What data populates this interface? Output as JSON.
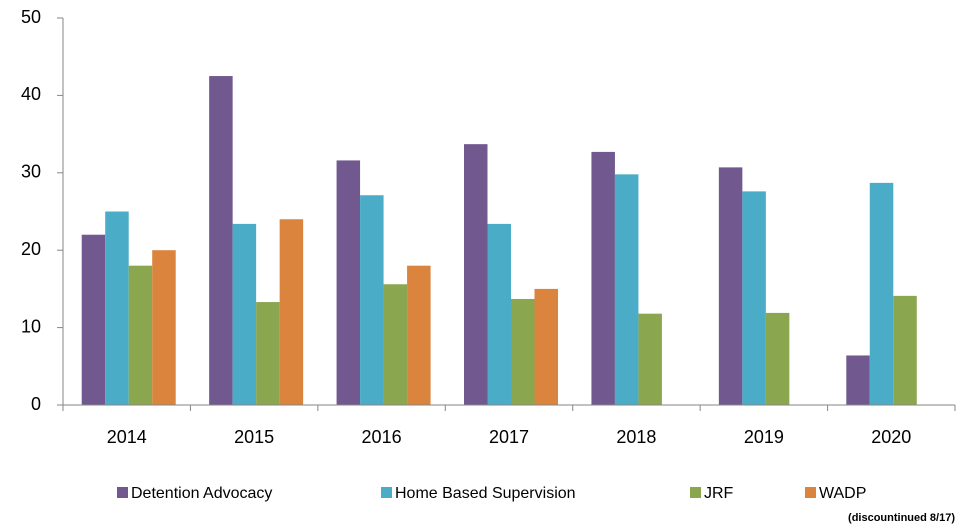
{
  "chart_data": {
    "type": "bar",
    "categories": [
      "2014",
      "2015",
      "2016",
      "2017",
      "2018",
      "2019",
      "2020"
    ],
    "series": [
      {
        "name": "Detention Advocacy",
        "color": "#71588f",
        "values": [
          22,
          42.5,
          31.6,
          33.7,
          32.7,
          30.7,
          6.4
        ]
      },
      {
        "name": "Home Based Supervision",
        "color": "#4aacc6",
        "values": [
          25,
          23.4,
          27.1,
          23.4,
          29.8,
          27.6,
          28.7
        ]
      },
      {
        "name": "JRF",
        "color": "#8aa64f",
        "values": [
          18,
          13.3,
          15.6,
          13.7,
          11.8,
          11.9,
          14.1
        ]
      },
      {
        "name": "WADP",
        "color": "#db843d",
        "values": [
          20,
          24,
          18,
          15,
          null,
          null,
          null
        ]
      }
    ],
    "annotation": "(discountinued 8/17)",
    "ylim": [
      0,
      50
    ],
    "yticks": [
      0,
      10,
      20,
      30,
      40,
      50
    ],
    "grid": false
  }
}
